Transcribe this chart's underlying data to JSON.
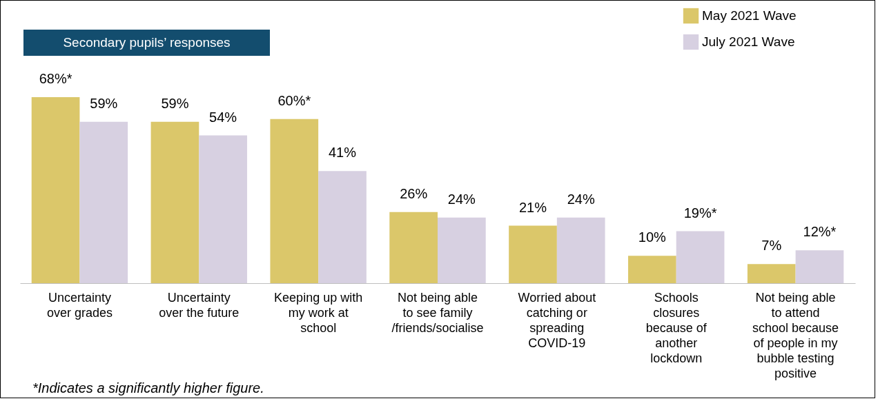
{
  "chart_data": {
    "type": "bar",
    "title": "Secondary pupils’ responses",
    "categories": [
      "Uncertainty over grades",
      "Uncertainty over the future",
      "Keeping up with my work at school",
      "Not being able to see family /friends/socialise",
      "Worried about catching or spreading COVID-19",
      "Schools closures because of another lockdown",
      "Not being able to attend school because of people in my bubble testing positive"
    ],
    "series": [
      {
        "name": "May 2021 Wave",
        "color": "#dbc76a",
        "values": [
          68,
          59,
          60,
          26,
          21,
          10,
          7
        ],
        "value_labels": [
          "68%*",
          "59%",
          "60%*",
          "26%",
          "21%",
          "10%",
          "7%"
        ]
      },
      {
        "name": "July 2021 Wave",
        "color": "#d7d0e1",
        "values": [
          59,
          54,
          41,
          24,
          24,
          19,
          12
        ],
        "value_labels": [
          "59%",
          "54%",
          "41%",
          "24%",
          "24%",
          "19%*",
          "12%*"
        ]
      }
    ],
    "legend": "top right",
    "annotations": [
      "*Indicates a significantly higher figure."
    ]
  }
}
